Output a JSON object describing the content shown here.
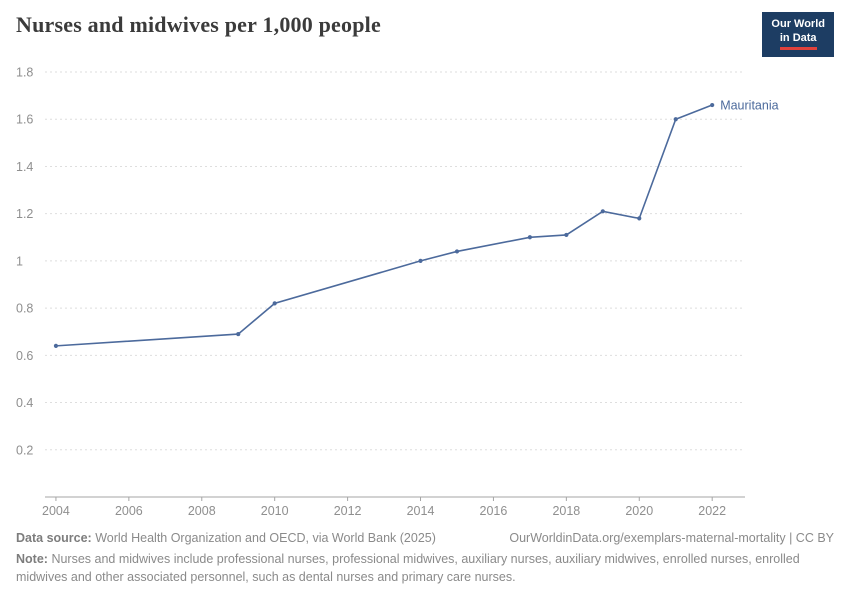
{
  "header": {
    "title": "Nurses and midwives per 1,000 people"
  },
  "logo": {
    "line1": "Our World",
    "line2": "in Data",
    "background_color": "#1d3d63",
    "accent_color": "#e0413c"
  },
  "chart_data": {
    "type": "line",
    "title": "Nurses and midwives per 1,000 people",
    "grid": "horizontal dashed",
    "legend_position": "end-of-line label",
    "xlim": [
      2003.7,
      2022.9
    ],
    "ylim": [
      0,
      1.8
    ],
    "x_ticks": [
      2004,
      2006,
      2008,
      2010,
      2012,
      2014,
      2016,
      2018,
      2020,
      2022
    ],
    "y_ticks": [
      0.2,
      0.4,
      0.6,
      0.8,
      1,
      1.2,
      1.4,
      1.6,
      1.8
    ],
    "axis_color": "#a5a5a5",
    "grid_color": "#dedede",
    "tick_label_color": "#8f8f8f",
    "series": [
      {
        "name": "Mauritania",
        "color": "#4c6a9c",
        "points": [
          {
            "year": 2004,
            "value": 0.64
          },
          {
            "year": 2009,
            "value": 0.69
          },
          {
            "year": 2010,
            "value": 0.82
          },
          {
            "year": 2014,
            "value": 1.0
          },
          {
            "year": 2015,
            "value": 1.04
          },
          {
            "year": 2017,
            "value": 1.1
          },
          {
            "year": 2018,
            "value": 1.11
          },
          {
            "year": 2019,
            "value": 1.21
          },
          {
            "year": 2020,
            "value": 1.18
          },
          {
            "year": 2021,
            "value": 1.6
          },
          {
            "year": 2022,
            "value": 1.66
          }
        ]
      }
    ]
  },
  "footer": {
    "datasource_label": "Data source:",
    "datasource_text": "World Health Organization and OECD, via World Bank (2025)",
    "link": "OurWorldinData.org/exemplars-maternal-mortality | CC BY",
    "note_label": "Note:",
    "note_text": "Nurses and midwives include professional nurses, professional midwives, auxiliary nurses, auxiliary midwives, enrolled nurses, enrolled midwives and other associated personnel, such as dental nurses and primary care nurses."
  }
}
